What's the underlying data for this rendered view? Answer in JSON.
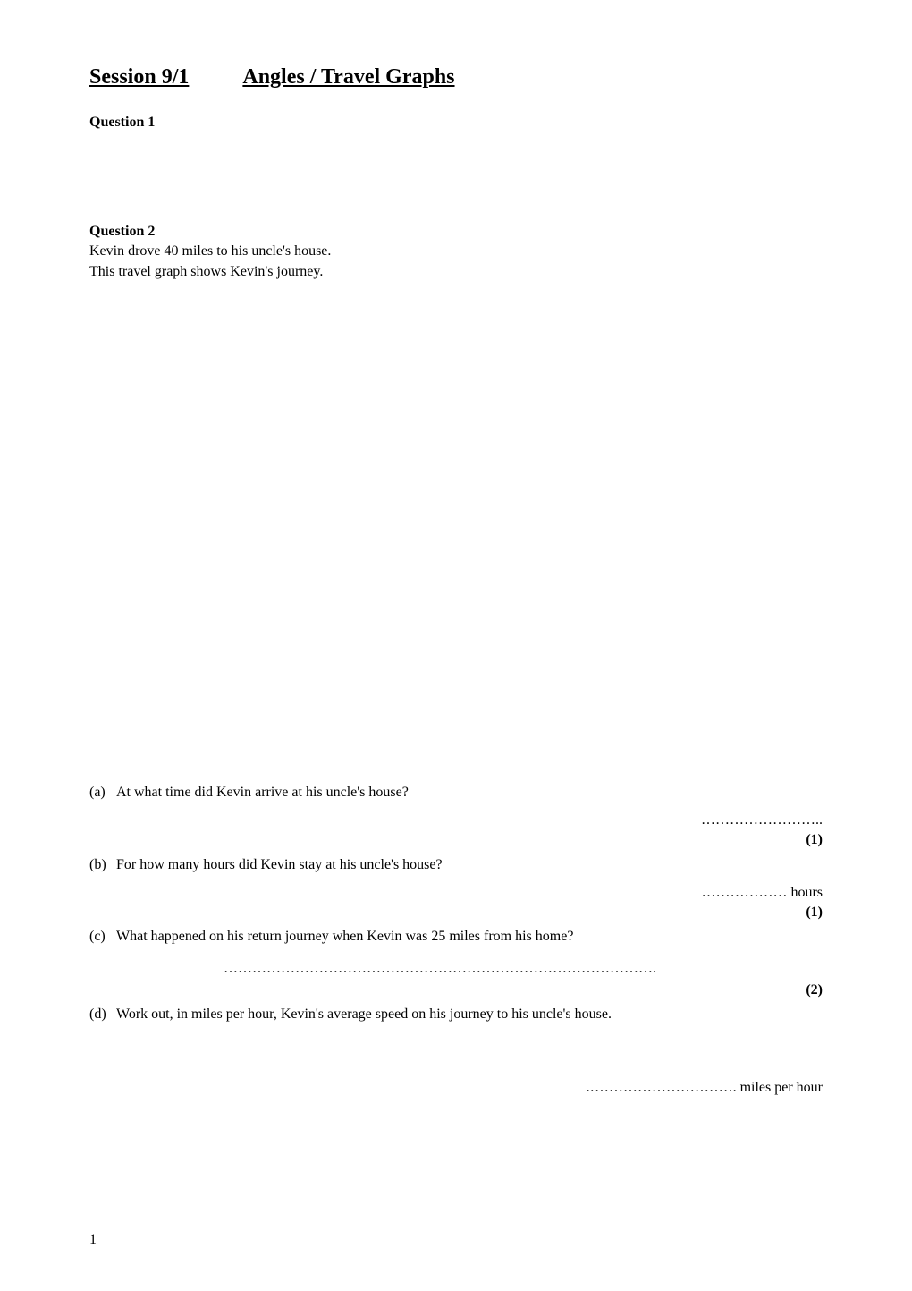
{
  "title_left": "Session 9/1",
  "title_right": "Angles / Travel Graphs",
  "q1": {
    "label": "Question 1"
  },
  "q2": {
    "label": "Question 2",
    "intro_line1": "Kevin drove 40 miles to his uncle's house.",
    "intro_line2": "This travel graph shows Kevin's journey.",
    "parts": {
      "a": {
        "letter": "(a)",
        "text": "At what time did Kevin arrive at his uncle's house?",
        "answer_dots": "……………………..",
        "marks": "(1)"
      },
      "b": {
        "letter": "(b)",
        "text": "For how many hours did Kevin stay at his uncle's house?",
        "answer_dots": "……………… hours",
        "marks": "(1)"
      },
      "c": {
        "letter": "(c)",
        "text": "What happened on his return journey when Kevin was 25 miles from his home?",
        "answer_dots": "……………………………………………………………………………….",
        "marks": "(2)"
      },
      "d": {
        "letter": "(d)",
        "text": "Work out, in miles per hour, Kevin's average speed on his journey to his uncle's house.",
        "answer_dots": ".…………………………. miles per hour"
      }
    }
  },
  "page_number": "1"
}
